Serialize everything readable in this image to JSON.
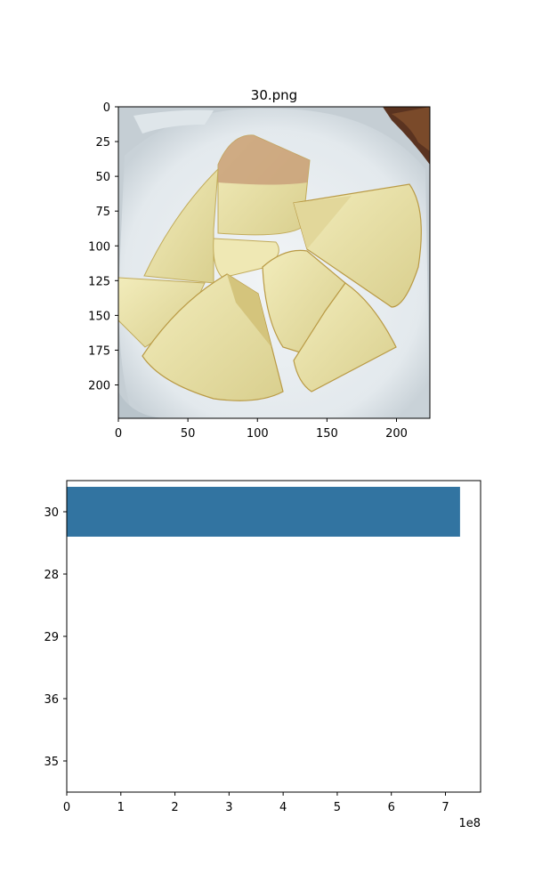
{
  "image_panel": {
    "title": "30.png",
    "xticks": [
      0,
      50,
      100,
      150,
      200
    ],
    "yticks": [
      0,
      25,
      50,
      75,
      100,
      125,
      150,
      175,
      200
    ],
    "extent": [
      0,
      224
    ],
    "colors": {
      "tray": "#e7edf0",
      "tray_shadow": "#b9c4cb",
      "apple_flesh": "#e9e2a6",
      "apple_flesh_dark": "#d2c685",
      "apple_edge": "#b99a45",
      "apple_skin": "#c9a07a",
      "background_dark": "#5a3320"
    }
  },
  "chart_data": {
    "type": "bar",
    "orientation": "horizontal",
    "categories": [
      "30",
      "28",
      "29",
      "36",
      "35"
    ],
    "values": [
      727000000,
      0,
      0,
      0,
      0
    ],
    "xlim": [
      0,
      765000000
    ],
    "xticks": [
      0,
      1,
      2,
      3,
      4,
      5,
      6,
      7
    ],
    "xtick_scale": 100000000,
    "offset_label": "1e8",
    "bar_color": "#3274a1"
  }
}
